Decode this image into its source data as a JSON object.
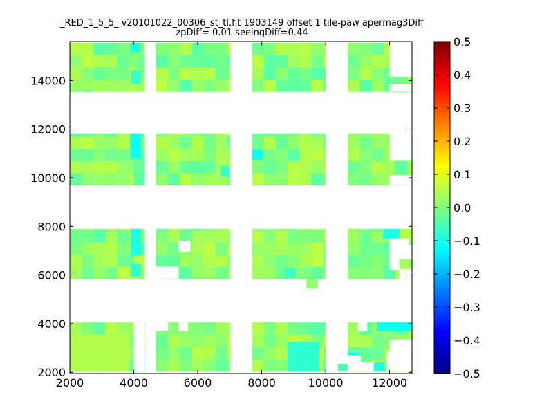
{
  "title": {
    "line1": "_RED_1_5_5_ v20101022_00306_st_tl.fit 1903149 offset 1 tile-paw apermag3Diff",
    "line2": "zpDiff= 0.01 seeingDiff=0.44"
  },
  "chart_data": {
    "type": "heatmap",
    "title": "_RED_1_5_5_ v20101022_00306_st_tl.fit 1903149 offset 1 tile-paw apermag3Diff zpDiff= 0.01 seeingDiff=0.44",
    "xlabel": "",
    "ylabel": "",
    "xlim": [
      2000,
      12700
    ],
    "ylim": [
      1950,
      15600
    ],
    "x_ticks": [
      2000,
      4000,
      6000,
      8000,
      10000,
      12000
    ],
    "y_ticks": [
      2000,
      4000,
      6000,
      8000,
      10000,
      12000,
      14000
    ],
    "x_tick_labels": [
      "2000",
      "4000",
      "6000",
      "8000",
      "10000",
      "12000"
    ],
    "y_tick_labels": [
      "2000",
      "4000",
      "6000",
      "8000",
      "10000",
      "12000",
      "14000"
    ],
    "colorbar": {
      "colormap": "jet",
      "vmin": -0.5,
      "vmax": 0.5,
      "ticks": [
        0.5,
        0.4,
        0.3,
        0.2,
        0.1,
        0.0,
        -0.1,
        -0.2,
        -0.3,
        -0.4,
        -0.5
      ],
      "tick_labels": [
        "0.5",
        "0.4",
        "0.3",
        "0.2",
        "0.1",
        "0.0",
        "−0.1",
        "−0.2",
        "−0.3",
        "−0.4",
        "−0.5"
      ]
    },
    "cell_size": [
      370,
      500
    ],
    "rows": [
      {
        "y0": 2050,
        "y1": 4050
      },
      {
        "y0": 5850,
        "y1": 7900
      },
      {
        "y0": 9700,
        "y1": 11800
      },
      {
        "y0": 13550,
        "y1": 15550
      }
    ],
    "cols": [
      {
        "x0": 2000,
        "x1": 4000
      },
      {
        "x0": 4000,
        "x1": 4330
      },
      {
        "x0": 4700,
        "x1": 7000
      },
      {
        "x0": 7700,
        "x1": 10000
      },
      {
        "x0": 10700,
        "x1": 12700
      }
    ],
    "missing_cells": [
      {
        "x": 5400,
        "y": 6950,
        "w": 370,
        "h": 450
      },
      {
        "x": 4700,
        "y": 5850,
        "w": 700,
        "h": 500
      },
      {
        "x": 4000,
        "y": 2050,
        "w": 330,
        "h": 2000
      },
      {
        "x": 4700,
        "y": 3700,
        "w": 370,
        "h": 350
      },
      {
        "x": 5400,
        "y": 3700,
        "w": 300,
        "h": 350
      },
      {
        "x": 12000,
        "y": 13550,
        "w": 700,
        "h": 300
      },
      {
        "x": 12000,
        "y": 14150,
        "w": 700,
        "h": 1400
      },
      {
        "x": 12000,
        "y": 9700,
        "w": 700,
        "h": 400
      },
      {
        "x": 12000,
        "y": 10700,
        "w": 700,
        "h": 1100
      },
      {
        "x": 12000,
        "y": 7200,
        "w": 600,
        "h": 300
      },
      {
        "x": 12000,
        "y": 6200,
        "w": 300,
        "h": 1000
      },
      {
        "x": 12300,
        "y": 5850,
        "w": 400,
        "h": 400
      },
      {
        "x": 12300,
        "y": 6650,
        "w": 400,
        "h": 600
      },
      {
        "x": 10700,
        "y": 2050,
        "w": 400,
        "h": 650
      },
      {
        "x": 11100,
        "y": 2050,
        "w": 400,
        "h": 350
      },
      {
        "x": 11900,
        "y": 2050,
        "w": 800,
        "h": 800
      },
      {
        "x": 12000,
        "y": 2850,
        "w": 700,
        "h": 500
      },
      {
        "x": 11000,
        "y": 3700,
        "w": 300,
        "h": 350
      },
      {
        "x": 10000,
        "y": 2050,
        "w": 380,
        "h": 600
      }
    ],
    "extra_cells": [
      {
        "x": 9400,
        "y": 5450,
        "w": 350,
        "h": 400,
        "value": 0.02
      },
      {
        "x": 10350,
        "y": 2050,
        "w": 350,
        "h": 300,
        "value": -0.05
      },
      {
        "x": 11500,
        "y": 2050,
        "w": 350,
        "h": 350,
        "value": -0.1
      }
    ],
    "notable_cells": [
      {
        "x": 3900,
        "y": 10800,
        "w": 330,
        "h": 1000,
        "value": -0.12
      },
      {
        "x": 3900,
        "y": 6800,
        "w": 330,
        "h": 1100,
        "value": -0.1
      },
      {
        "x": 3900,
        "y": 5950,
        "w": 330,
        "h": 500,
        "value": -0.08
      },
      {
        "x": 3900,
        "y": 13850,
        "w": 330,
        "h": 550,
        "value": -0.07
      },
      {
        "x": 3900,
        "y": 15150,
        "w": 330,
        "h": 400,
        "value": -0.09
      },
      {
        "x": 4700,
        "y": 13550,
        "w": 330,
        "h": 450,
        "value": 0.06
      },
      {
        "x": 7700,
        "y": 10750,
        "w": 330,
        "h": 400,
        "value": -0.12
      },
      {
        "x": 6700,
        "y": 10050,
        "w": 300,
        "h": 450,
        "value": -0.07
      },
      {
        "x": 8800,
        "y": 2050,
        "w": 1000,
        "h": 1200,
        "value": -0.08
      },
      {
        "x": 10700,
        "y": 2350,
        "w": 330,
        "h": 450,
        "value": -0.12
      },
      {
        "x": 11600,
        "y": 3700,
        "w": 1100,
        "h": 350,
        "value": -0.11
      },
      {
        "x": 12300,
        "y": 7500,
        "w": 400,
        "h": 400,
        "value": 0.05
      },
      {
        "x": 12300,
        "y": 5850,
        "w": 400,
        "h": 400,
        "value": 0.04
      },
      {
        "x": 11800,
        "y": 7500,
        "w": 500,
        "h": 400,
        "value": -0.1
      },
      {
        "x": 8700,
        "y": 5900,
        "w": 350,
        "h": 400,
        "value": -0.07
      },
      {
        "x": 2000,
        "y": 2050,
        "w": 1850,
        "h": 1500,
        "value": 0.05
      },
      {
        "x": 2000,
        "y": 13600,
        "w": 1900,
        "h": 400,
        "value": 0.03
      }
    ]
  }
}
